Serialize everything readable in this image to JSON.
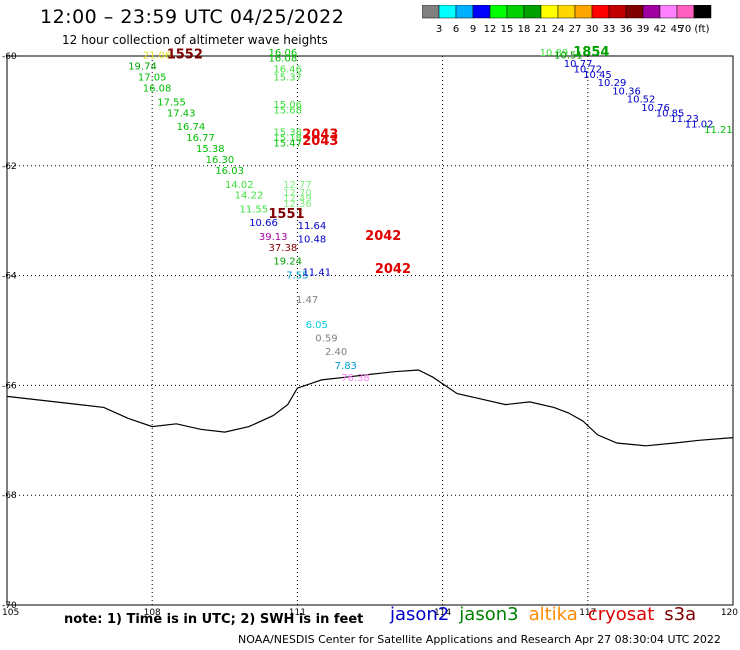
{
  "title": "12:00 – 23:59 UTC 04/25/2022",
  "subtitle": "12 hour collection of altimeter wave heights",
  "colorbar": {
    "colors": [
      "#808080",
      "#00ffff",
      "#00b0ff",
      "#0000ff",
      "#00ff00",
      "#00d000",
      "#00a000",
      "#ffff00",
      "#ffd700",
      "#ffa500",
      "#ff0000",
      "#c00000",
      "#800000",
      "#a000a0",
      "#ff80ff",
      "#ff60c0",
      "#000000"
    ],
    "ticks": [
      "3",
      "6",
      "9",
      "12",
      "15",
      "18",
      "21",
      "24",
      "27",
      "30",
      "33",
      "36",
      "39",
      "42",
      "45",
      "70 (ft)"
    ]
  },
  "axes": {
    "x_ticks": [
      "105",
      "108",
      "111",
      "114",
      "117",
      "120"
    ],
    "y_ticks": [
      "-60",
      "-62",
      "-64",
      "-66",
      "-68",
      "-70"
    ]
  },
  "observations": [
    {
      "v": "21.06",
      "c": "#e0e020",
      "lon": 108.1,
      "lat": -60.05
    },
    {
      "v": "19.74",
      "c": "#00a000",
      "lon": 107.8,
      "lat": -60.25
    },
    {
      "v": "17.05",
      "c": "#00c000",
      "lon": 108.0,
      "lat": -60.45
    },
    {
      "v": "16.08",
      "c": "#00c000",
      "lon": 108.1,
      "lat": -60.65
    },
    {
      "v": "17.55",
      "c": "#00c000",
      "lon": 108.4,
      "lat": -60.9
    },
    {
      "v": "17.43",
      "c": "#00c000",
      "lon": 108.6,
      "lat": -61.1
    },
    {
      "v": "16.74",
      "c": "#00c000",
      "lon": 108.8,
      "lat": -61.35
    },
    {
      "v": "16.77",
      "c": "#00c000",
      "lon": 109.0,
      "lat": -61.55
    },
    {
      "v": "15.38",
      "c": "#00c000",
      "lon": 109.2,
      "lat": -61.75
    },
    {
      "v": "16.30",
      "c": "#00c000",
      "lon": 109.4,
      "lat": -61.95
    },
    {
      "v": "16.03",
      "c": "#00c000",
      "lon": 109.6,
      "lat": -62.15
    },
    {
      "v": "14.02",
      "c": "#40e040",
      "lon": 109.8,
      "lat": -62.4
    },
    {
      "v": "14.22",
      "c": "#40e040",
      "lon": 110.0,
      "lat": -62.6
    },
    {
      "v": "11.55",
      "c": "#40e040",
      "lon": 110.1,
      "lat": -62.85
    },
    {
      "v": "10.66",
      "c": "#0000cc",
      "lon": 110.3,
      "lat": -63.1
    },
    {
      "v": "39.13",
      "c": "#a000a0",
      "lon": 110.5,
      "lat": -63.35
    },
    {
      "v": "37.38",
      "c": "#800000",
      "lon": 110.7,
      "lat": -63.55
    },
    {
      "v": "19.24",
      "c": "#00a000",
      "lon": 110.8,
      "lat": -63.8
    },
    {
      "v": "7.55",
      "c": "#00a0d0",
      "lon": 111.0,
      "lat": -64.05
    },
    {
      "v": "1.47",
      "c": "#808080",
      "lon": 111.2,
      "lat": -64.5
    },
    {
      "v": "6.05",
      "c": "#00d0e0",
      "lon": 111.4,
      "lat": -64.95
    },
    {
      "v": "0.59",
      "c": "#808080",
      "lon": 111.6,
      "lat": -65.2
    },
    {
      "v": "2.40",
      "c": "#808080",
      "lon": 111.8,
      "lat": -65.45
    },
    {
      "v": "7.83",
      "c": "#00a0d0",
      "lon": 112.0,
      "lat": -65.7
    },
    {
      "v": "76.38",
      "c": "#ff80ff",
      "lon": 112.2,
      "lat": -65.92
    },
    {
      "v": "16.06",
      "c": "#00c000",
      "lon": 110.7,
      "lat": -60.0
    },
    {
      "v": "16.08",
      "c": "#00c000",
      "lon": 110.7,
      "lat": -60.1
    },
    {
      "v": "16.46",
      "c": "#40e040",
      "lon": 110.8,
      "lat": -60.3
    },
    {
      "v": "15.37",
      "c": "#40e040",
      "lon": 110.8,
      "lat": -60.45
    },
    {
      "v": "15.06",
      "c": "#40e040",
      "lon": 110.8,
      "lat": -60.95
    },
    {
      "v": "15.68",
      "c": "#40e040",
      "lon": 110.8,
      "lat": -61.05
    },
    {
      "v": "15.38",
      "c": "#40e040",
      "lon": 110.8,
      "lat": -61.45
    },
    {
      "v": "15.18",
      "c": "#40e040",
      "lon": 110.8,
      "lat": -61.55
    },
    {
      "v": "15.47",
      "c": "#00c000",
      "lon": 110.8,
      "lat": -61.65
    },
    {
      "v": "12.77",
      "c": "#80f080",
      "lon": 111.0,
      "lat": -62.4
    },
    {
      "v": "12.70",
      "c": "#80f080",
      "lon": 111.0,
      "lat": -62.55
    },
    {
      "v": "12.49",
      "c": "#80f080",
      "lon": 111.0,
      "lat": -62.65
    },
    {
      "v": "12.36",
      "c": "#80f080",
      "lon": 111.0,
      "lat": -62.75
    },
    {
      "v": "11.64",
      "c": "#0000cc",
      "lon": 111.3,
      "lat": -63.15
    },
    {
      "v": "10.48",
      "c": "#0000cc",
      "lon": 111.3,
      "lat": -63.4
    },
    {
      "v": "11.41",
      "c": "#0000cc",
      "lon": 111.4,
      "lat": -64.0
    },
    {
      "v": "10.89",
      "c": "#40e040",
      "lon": 116.3,
      "lat": -60.0
    },
    {
      "v": "10.51",
      "c": "#00a000",
      "lon": 116.6,
      "lat": -60.05
    },
    {
      "v": "10.77",
      "c": "#0000cc",
      "lon": 116.8,
      "lat": -60.2
    },
    {
      "v": "10.72",
      "c": "#0000cc",
      "lon": 117.0,
      "lat": -60.3
    },
    {
      "v": "10.45",
      "c": "#0000cc",
      "lon": 117.2,
      "lat": -60.4
    },
    {
      "v": "10.29",
      "c": "#0000cc",
      "lon": 117.5,
      "lat": -60.55
    },
    {
      "v": "10.36",
      "c": "#0000cc",
      "lon": 117.8,
      "lat": -60.7
    },
    {
      "v": "10.52",
      "c": "#0000cc",
      "lon": 118.1,
      "lat": -60.85
    },
    {
      "v": "10.76",
      "c": "#0000cc",
      "lon": 118.4,
      "lat": -61.0
    },
    {
      "v": "10.85",
      "c": "#0000cc",
      "lon": 118.7,
      "lat": -61.1
    },
    {
      "v": "11.23",
      "c": "#0000cc",
      "lon": 119.0,
      "lat": -61.2
    },
    {
      "v": "11.02",
      "c": "#0000cc",
      "lon": 119.3,
      "lat": -61.3
    },
    {
      "v": "11.21",
      "c": "#00c000",
      "lon": 119.7,
      "lat": -61.4
    }
  ],
  "time_labels": [
    {
      "t": "1552",
      "c": "#800000",
      "lon": 108.3,
      "lat": -60.05
    },
    {
      "t": "2043",
      "c": "#e00000",
      "lon": 111.1,
      "lat": -61.5
    },
    {
      "t": "2043",
      "c": "#e00000",
      "lon": 111.1,
      "lat": -61.62
    },
    {
      "t": "1551",
      "c": "#800000",
      "lon": 110.4,
      "lat": -62.95
    },
    {
      "t": "2042",
      "c": "#e00000",
      "lon": 112.4,
      "lat": -63.35
    },
    {
      "t": "2042",
      "c": "#e00000",
      "lon": 112.6,
      "lat": -63.95
    },
    {
      "t": "1854",
      "c": "#00a000",
      "lon": 116.7,
      "lat": -60.0
    }
  ],
  "coastline": [
    [
      105,
      -66.2
    ],
    [
      105.5,
      -66.25
    ],
    [
      106,
      -66.3
    ],
    [
      106.5,
      -66.35
    ],
    [
      107,
      -66.4
    ],
    [
      107.5,
      -66.6
    ],
    [
      108,
      -66.75
    ],
    [
      108.5,
      -66.7
    ],
    [
      109,
      -66.8
    ],
    [
      109.5,
      -66.85
    ],
    [
      110,
      -66.75
    ],
    [
      110.5,
      -66.55
    ],
    [
      110.8,
      -66.35
    ],
    [
      111,
      -66.05
    ],
    [
      111.5,
      -65.9
    ],
    [
      112,
      -65.85
    ],
    [
      112.5,
      -65.8
    ],
    [
      113,
      -65.75
    ],
    [
      113.5,
      -65.72
    ],
    [
      113.8,
      -65.85
    ],
    [
      114.3,
      -66.15
    ],
    [
      114.8,
      -66.25
    ],
    [
      115.3,
      -66.35
    ],
    [
      115.8,
      -66.3
    ],
    [
      116.3,
      -66.4
    ],
    [
      116.6,
      -66.5
    ],
    [
      116.9,
      -66.65
    ],
    [
      117.2,
      -66.9
    ],
    [
      117.6,
      -67.05
    ],
    [
      118.2,
      -67.1
    ],
    [
      118.8,
      -67.05
    ],
    [
      119.3,
      -67.0
    ],
    [
      120,
      -66.95
    ]
  ],
  "note": "note:  1) Time is in UTC;  2) SWH is in feet",
  "satellites": [
    {
      "name": "jason2",
      "color": "#0000cc"
    },
    {
      "name": "jason3",
      "color": "#008000"
    },
    {
      "name": "altika",
      "color": "#ff8c00"
    },
    {
      "name": "cryosat",
      "color": "#e00000"
    },
    {
      "name": "s3a",
      "color": "#800000"
    }
  ],
  "credit": "NOAA/NESDIS Center for Satellite Applications and Research    Apr 27 08:30:04 UTC 2022"
}
